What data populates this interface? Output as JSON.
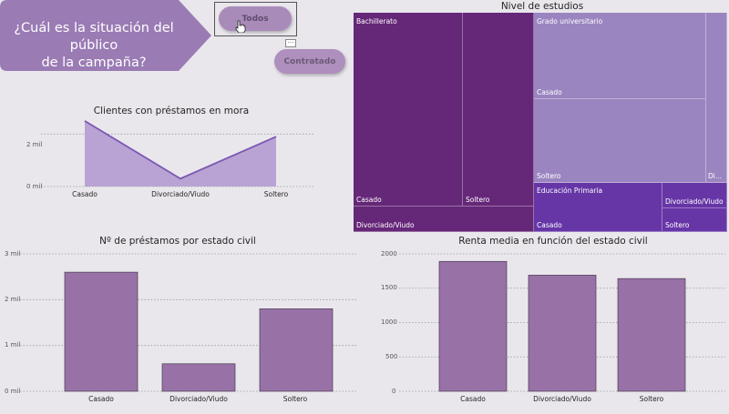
{
  "question": {
    "line1": "¿Cuál es la situación del público",
    "line2": "de la campaña?"
  },
  "slicer": {
    "todos_label": "Todos",
    "contratado_label": "Contratado",
    "expand_glyph": "···"
  },
  "colors": {
    "banner": "#9a7bb4",
    "bar": "#9872a6",
    "line": "#7c57b3",
    "area": "#b9a3d4",
    "tm_dark": "#652778",
    "tm_light": "#9b85c0",
    "tm_mid": "#6636a7"
  },
  "chart_data": [
    {
      "type": "area",
      "title": "Clientes con préstamos en mora",
      "categories": [
        "Casado",
        "Divorciado/Viudo",
        "Soltero"
      ],
      "values": [
        2500,
        300,
        1900
      ],
      "y_ticks": [
        "2 mil",
        "0 mil"
      ],
      "y_tick_values": [
        2000,
        0
      ],
      "ylim": [
        0,
        2600
      ],
      "grid": true
    },
    {
      "type": "heatmap",
      "subtype": "treemap",
      "title": "Nivel de estudios",
      "groups": [
        {
          "name": "Bachillerato",
          "children": [
            {
              "name": "Casado",
              "value": 870
            },
            {
              "name": "Soltero",
              "value": 300
            },
            {
              "name": "Divorciado/Viudo",
              "value": 150
            }
          ]
        },
        {
          "name": "Grado universitario",
          "children": [
            {
              "name": "Casado",
              "value": 390
            },
            {
              "name": "Soltero",
              "value": 380
            },
            {
              "name": "Di...",
              "value": 50
            }
          ]
        },
        {
          "name": "Educación Primaria",
          "children": [
            {
              "name": "Casado",
              "value": 210
            },
            {
              "name": "Divorciado/Viudo",
              "value": 40
            },
            {
              "name": "Soltero",
              "value": 40
            }
          ]
        }
      ]
    },
    {
      "type": "bar",
      "title": "Nº de préstamos por estado civil",
      "categories": [
        "Casado",
        "Divorciado/Viudo",
        "Soltero"
      ],
      "values": [
        2600,
        600,
        1800
      ],
      "y_ticks": [
        "3 mil",
        "2 mil",
        "1 mil",
        "0 mil"
      ],
      "y_tick_values": [
        3000,
        2000,
        1000,
        0
      ],
      "ylim": [
        0,
        3000
      ],
      "grid": true
    },
    {
      "type": "bar",
      "title": "Renta media en función del estado civil",
      "categories": [
        "Casado",
        "Divorciado/Viudo",
        "Soltero"
      ],
      "values": [
        1890,
        1690,
        1640
      ],
      "y_ticks": [
        "2000",
        "1500",
        "1000",
        "500",
        "0"
      ],
      "y_tick_values": [
        2000,
        1500,
        1000,
        500,
        0
      ],
      "ylim": [
        0,
        2000
      ],
      "grid": true
    }
  ]
}
